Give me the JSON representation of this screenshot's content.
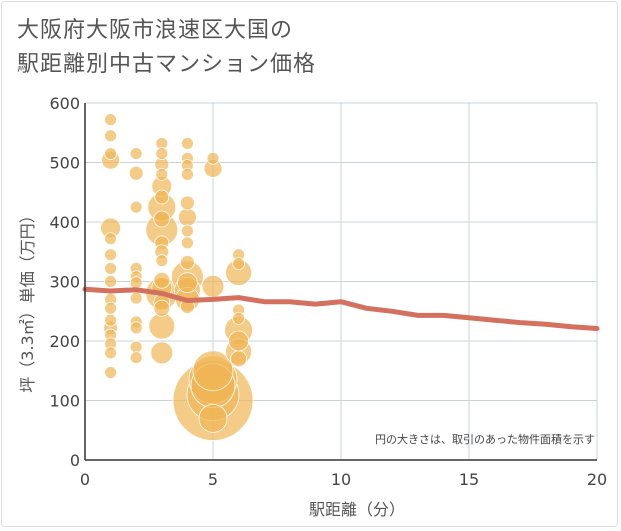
{
  "title_line1": "大阪府大阪市浪速区大国の",
  "title_line2": "駅距離別中古マンション価格",
  "note": "円の大きさは、取引のあった物件面積を示す",
  "colors": {
    "bubble": "#f0b554",
    "bubble_stroke": "#ffffff",
    "trend": "#d4705e",
    "grid": "#c8d3dc",
    "axis": "#333333",
    "text": "#444444"
  },
  "chart_data": {
    "type": "scatter",
    "title": "大阪府大阪市浪速区大国の 駅距離別中古マンション価格",
    "xlabel": "駅距離（分）",
    "ylabel": "坪（3.3㎡）単価（万円）",
    "xlim": [
      0,
      20
    ],
    "ylim": [
      0,
      600
    ],
    "x_ticks": [
      0,
      5,
      10,
      15,
      20
    ],
    "y_ticks": [
      0,
      100,
      200,
      300,
      400,
      500,
      600
    ],
    "grid": true,
    "trend": [
      {
        "x": 0,
        "y": 287
      },
      {
        "x": 1,
        "y": 284
      },
      {
        "x": 2,
        "y": 286
      },
      {
        "x": 3,
        "y": 280
      },
      {
        "x": 4,
        "y": 268
      },
      {
        "x": 5,
        "y": 270
      },
      {
        "x": 6,
        "y": 273
      },
      {
        "x": 7,
        "y": 266
      },
      {
        "x": 8,
        "y": 266
      },
      {
        "x": 9,
        "y": 262
      },
      {
        "x": 10,
        "y": 266
      },
      {
        "x": 11,
        "y": 255
      },
      {
        "x": 12,
        "y": 250
      },
      {
        "x": 13,
        "y": 243
      },
      {
        "x": 14,
        "y": 243
      },
      {
        "x": 15,
        "y": 239
      },
      {
        "x": 16,
        "y": 235
      },
      {
        "x": 17,
        "y": 231
      },
      {
        "x": 18,
        "y": 228
      },
      {
        "x": 19,
        "y": 224
      },
      {
        "x": 20,
        "y": 221
      }
    ],
    "points": [
      {
        "x": 1,
        "y": 572,
        "s": 6
      },
      {
        "x": 1,
        "y": 545,
        "s": 6
      },
      {
        "x": 1,
        "y": 515,
        "s": 6
      },
      {
        "x": 1,
        "y": 504,
        "s": 9
      },
      {
        "x": 1,
        "y": 390,
        "s": 10
      },
      {
        "x": 1,
        "y": 372,
        "s": 6
      },
      {
        "x": 1,
        "y": 345,
        "s": 6
      },
      {
        "x": 1,
        "y": 322,
        "s": 6
      },
      {
        "x": 1,
        "y": 300,
        "s": 6
      },
      {
        "x": 1,
        "y": 270,
        "s": 6
      },
      {
        "x": 1,
        "y": 255,
        "s": 6
      },
      {
        "x": 1,
        "y": 235,
        "s": 6
      },
      {
        "x": 1,
        "y": 222,
        "s": 7
      },
      {
        "x": 1,
        "y": 210,
        "s": 6
      },
      {
        "x": 1,
        "y": 195,
        "s": 6
      },
      {
        "x": 1,
        "y": 180,
        "s": 6
      },
      {
        "x": 1,
        "y": 147,
        "s": 6
      },
      {
        "x": 2,
        "y": 515,
        "s": 6
      },
      {
        "x": 2,
        "y": 482,
        "s": 7
      },
      {
        "x": 2,
        "y": 425,
        "s": 6
      },
      {
        "x": 2,
        "y": 322,
        "s": 6
      },
      {
        "x": 2,
        "y": 308,
        "s": 6
      },
      {
        "x": 2,
        "y": 298,
        "s": 6
      },
      {
        "x": 2,
        "y": 272,
        "s": 6
      },
      {
        "x": 2,
        "y": 232,
        "s": 6
      },
      {
        "x": 2,
        "y": 222,
        "s": 6
      },
      {
        "x": 2,
        "y": 190,
        "s": 6
      },
      {
        "x": 2,
        "y": 172,
        "s": 6
      },
      {
        "x": 3,
        "y": 532,
        "s": 6
      },
      {
        "x": 3,
        "y": 515,
        "s": 6
      },
      {
        "x": 3,
        "y": 497,
        "s": 7
      },
      {
        "x": 3,
        "y": 480,
        "s": 6
      },
      {
        "x": 3,
        "y": 460,
        "s": 10
      },
      {
        "x": 3,
        "y": 442,
        "s": 7
      },
      {
        "x": 3,
        "y": 425,
        "s": 14
      },
      {
        "x": 3,
        "y": 405,
        "s": 8
      },
      {
        "x": 3,
        "y": 387,
        "s": 16
      },
      {
        "x": 3,
        "y": 365,
        "s": 7
      },
      {
        "x": 3,
        "y": 350,
        "s": 7
      },
      {
        "x": 3,
        "y": 335,
        "s": 6
      },
      {
        "x": 3,
        "y": 302,
        "s": 8
      },
      {
        "x": 3,
        "y": 290,
        "s": 10
      },
      {
        "x": 3,
        "y": 280,
        "s": 16
      },
      {
        "x": 3,
        "y": 265,
        "s": 8
      },
      {
        "x": 3,
        "y": 255,
        "s": 8
      },
      {
        "x": 3,
        "y": 225,
        "s": 13
      },
      {
        "x": 3,
        "y": 180,
        "s": 11
      },
      {
        "x": 4,
        "y": 532,
        "s": 6
      },
      {
        "x": 4,
        "y": 507,
        "s": 6
      },
      {
        "x": 4,
        "y": 495,
        "s": 6
      },
      {
        "x": 4,
        "y": 480,
        "s": 6
      },
      {
        "x": 4,
        "y": 432,
        "s": 7
      },
      {
        "x": 4,
        "y": 408,
        "s": 9
      },
      {
        "x": 4,
        "y": 385,
        "s": 6
      },
      {
        "x": 4,
        "y": 365,
        "s": 6
      },
      {
        "x": 4,
        "y": 332,
        "s": 7
      },
      {
        "x": 4,
        "y": 308,
        "s": 16
      },
      {
        "x": 4,
        "y": 298,
        "s": 10
      },
      {
        "x": 4,
        "y": 285,
        "s": 13
      },
      {
        "x": 4,
        "y": 270,
        "s": 12
      },
      {
        "x": 4,
        "y": 258,
        "s": 7
      },
      {
        "x": 5,
        "y": 507,
        "s": 6
      },
      {
        "x": 5,
        "y": 490,
        "s": 9
      },
      {
        "x": 5,
        "y": 292,
        "s": 11
      },
      {
        "x": 5,
        "y": 150,
        "s": 20
      },
      {
        "x": 5,
        "y": 135,
        "s": 24
      },
      {
        "x": 5,
        "y": 125,
        "s": 22
      },
      {
        "x": 5,
        "y": 110,
        "s": 26
      },
      {
        "x": 5,
        "y": 100,
        "s": 40
      },
      {
        "x": 5,
        "y": 70,
        "s": 14
      },
      {
        "x": 6,
        "y": 345,
        "s": 6
      },
      {
        "x": 6,
        "y": 330,
        "s": 6
      },
      {
        "x": 6,
        "y": 315,
        "s": 13
      },
      {
        "x": 6,
        "y": 252,
        "s": 6
      },
      {
        "x": 6,
        "y": 238,
        "s": 6
      },
      {
        "x": 6,
        "y": 218,
        "s": 14
      },
      {
        "x": 6,
        "y": 200,
        "s": 10
      },
      {
        "x": 6,
        "y": 182,
        "s": 13
      },
      {
        "x": 6,
        "y": 170,
        "s": 8
      }
    ]
  }
}
